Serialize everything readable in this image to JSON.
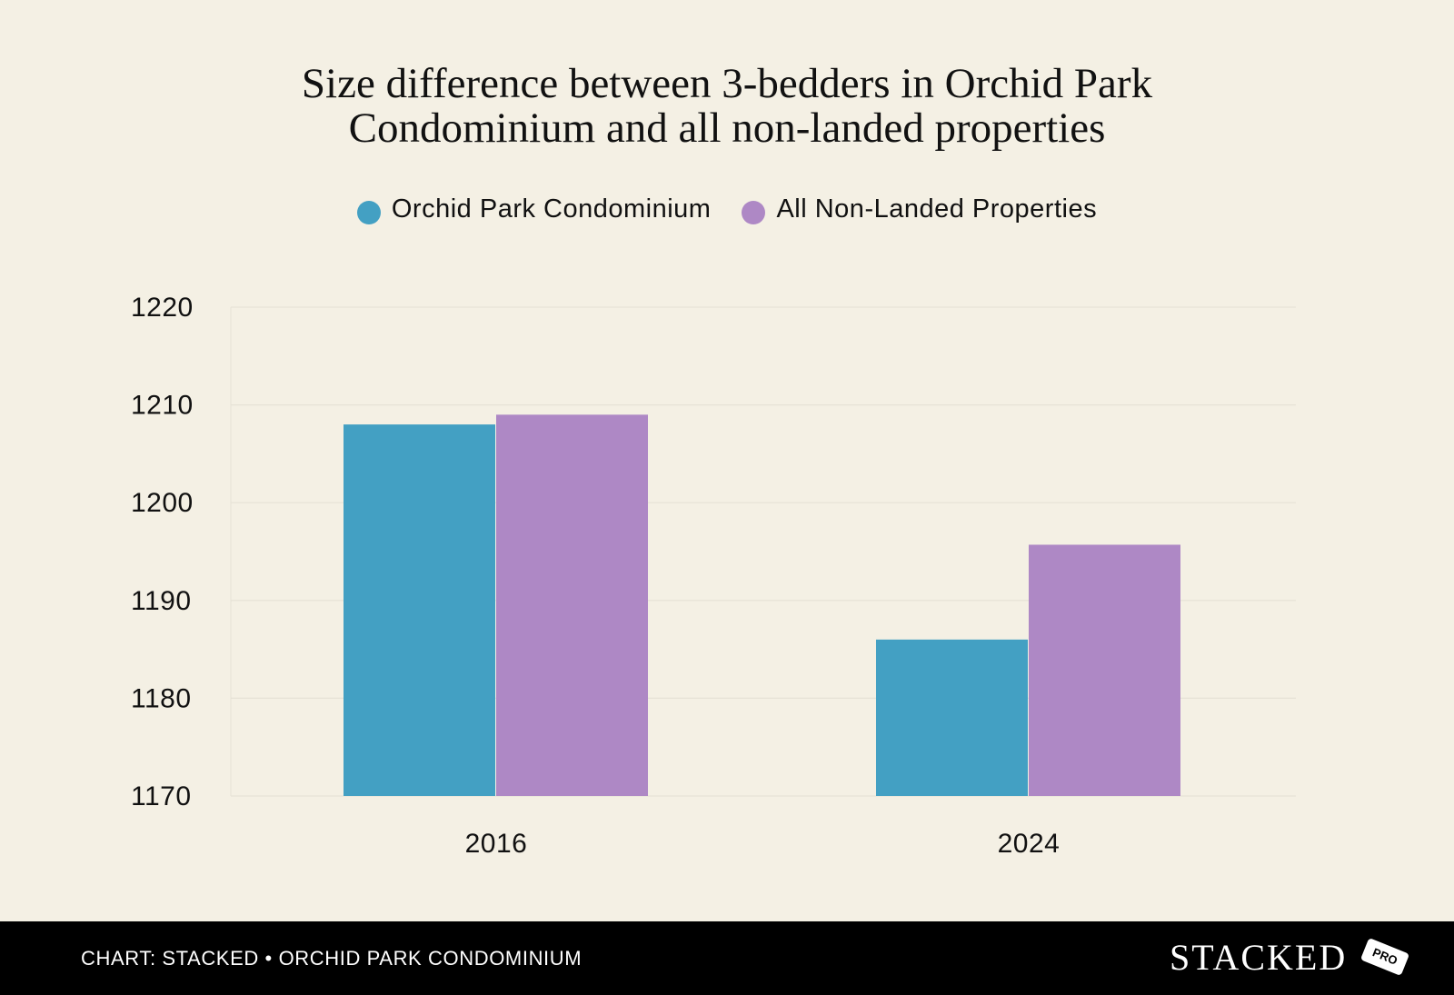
{
  "chart_data": {
    "type": "bar",
    "title": "Size difference between 3-bedders in Orchid Park Condominium and all non-landed properties",
    "title_lines": [
      "Size difference between 3-bedders in Orchid Park",
      "Condominium and all non-landed properties"
    ],
    "xlabel": "",
    "ylabel": "",
    "categories": [
      "2016",
      "2024"
    ],
    "series": [
      {
        "name": "Orchid Park Condominium",
        "color": "#43a0c3",
        "values": [
          1208,
          1186
        ]
      },
      {
        "name": "All Non-Landed Properties",
        "color": "#ae88c5",
        "values": [
          1209,
          1195.7
        ]
      }
    ],
    "ylim": [
      1170,
      1220
    ],
    "yticks": [
      "1220",
      "1210",
      "1200",
      "1190",
      "1180",
      "1170"
    ],
    "grid": true,
    "legend_position": "top-center"
  },
  "footer": {
    "source": "CHART: STACKED • ORCHID PARK CONDOMINIUM",
    "logo": "STACKED",
    "badge": "PRO"
  },
  "colors": {
    "background": "#f4f0e4",
    "footer": "#000000",
    "gridline": "#e6e2d6"
  }
}
